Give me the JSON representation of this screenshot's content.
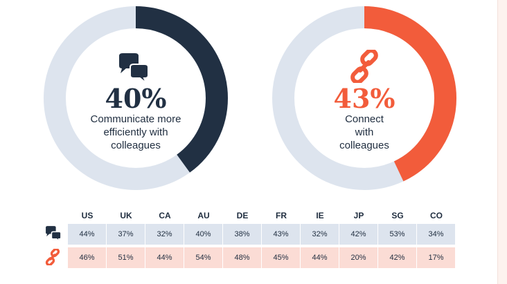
{
  "colors": {
    "navy": "#213043",
    "orange": "#f25c3b",
    "track_left": "#dde4ee",
    "track_right": "#dde4ee",
    "row_blue": "#dde4ee",
    "row_red": "#fbdcd5"
  },
  "chart_data": [
    {
      "type": "pie",
      "title": "",
      "value_label": "40%",
      "percent": 40,
      "caption": [
        "Communicate more",
        "efficiently with",
        "colleagues"
      ],
      "icon": "chat-bubbles-icon",
      "color": "#213043"
    },
    {
      "type": "pie",
      "title": "",
      "value_label": "43%",
      "percent": 43,
      "caption": [
        "Connect",
        "with",
        "colleagues"
      ],
      "icon": "chain-link-icon",
      "color": "#f25c3b"
    },
    {
      "type": "table",
      "columns": [
        "US",
        "UK",
        "CA",
        "AU",
        "DE",
        "FR",
        "IE",
        "JP",
        "SG",
        "CO"
      ],
      "rows": [
        {
          "icon": "chat-bubbles-icon",
          "values": [
            "44%",
            "37%",
            "32%",
            "40%",
            "38%",
            "43%",
            "32%",
            "42%",
            "53%",
            "34%"
          ]
        },
        {
          "icon": "chain-link-icon",
          "values": [
            "46%",
            "51%",
            "44%",
            "54%",
            "48%",
            "45%",
            "44%",
            "20%",
            "42%",
            "17%"
          ]
        }
      ]
    }
  ]
}
